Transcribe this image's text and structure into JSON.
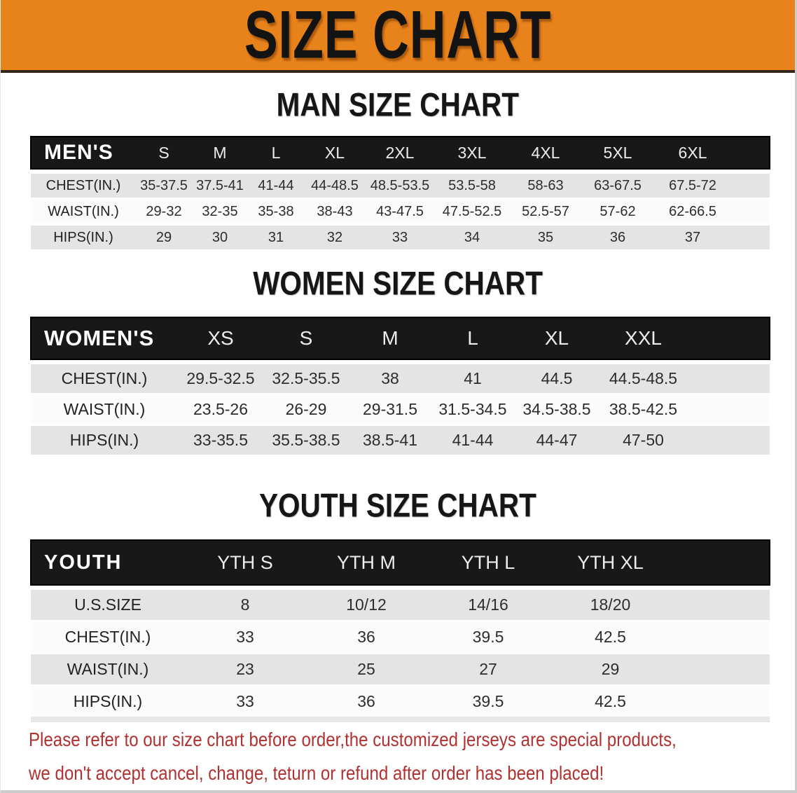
{
  "banner": {
    "title": "SIZE CHART",
    "background_color": "#e8821b",
    "text_color": "#131313"
  },
  "sections": [
    {
      "heading": "MAN SIZE CHART",
      "corner_label": "MEN'S",
      "columns": [
        "S",
        "M",
        "L",
        "XL",
        "2XL",
        "3XL",
        "4XL",
        "5XL",
        "6XL"
      ],
      "rows": [
        {
          "label": "CHEST(IN.)",
          "values": [
            "35-37.5",
            "37.5-41",
            "41-44",
            "44-48.5",
            "48.5-53.5",
            "53.5-58",
            "58-63",
            "63-67.5",
            "67.5-72"
          ]
        },
        {
          "label": "WAIST(IN.)",
          "values": [
            "29-32",
            "32-35",
            "35-38",
            "38-43",
            "43-47.5",
            "47.5-52.5",
            "52.5-57",
            "57-62",
            "62-66.5"
          ]
        },
        {
          "label": "HIPS(IN.)",
          "values": [
            "29",
            "30",
            "31",
            "32",
            "33",
            "34",
            "35",
            "36",
            "37"
          ]
        }
      ]
    },
    {
      "heading": "WOMEN SIZE CHART",
      "corner_label": "WOMEN'S",
      "columns": [
        "XS",
        "S",
        "M",
        "L",
        "XL",
        "XXL"
      ],
      "rows": [
        {
          "label": "CHEST(IN.)",
          "values": [
            "29.5-32.5",
            "32.5-35.5",
            "38",
            "41",
            "44.5",
            "44.5-48.5"
          ]
        },
        {
          "label": "WAIST(IN.)",
          "values": [
            "23.5-26",
            "26-29",
            "29-31.5",
            "31.5-34.5",
            "34.5-38.5",
            "38.5-42.5"
          ]
        },
        {
          "label": "HIPS(IN.)",
          "values": [
            "33-35.5",
            "35.5-38.5",
            "38.5-41",
            "41-44",
            "44-47",
            "47-50"
          ]
        }
      ]
    },
    {
      "heading": "YOUTH SIZE CHART",
      "corner_label": "YOUTH",
      "columns": [
        "YTH S",
        "YTH M",
        "YTH L",
        "YTH XL"
      ],
      "rows": [
        {
          "label": "U.S.SIZE",
          "values": [
            "8",
            "10/12",
            "14/16",
            "18/20"
          ]
        },
        {
          "label": "CHEST(IN.)",
          "values": [
            "33",
            "36",
            "39.5",
            "42.5"
          ]
        },
        {
          "label": "WAIST(IN.)",
          "values": [
            "23",
            "25",
            "27",
            "29"
          ]
        },
        {
          "label": "HIPS(IN.)",
          "values": [
            "33",
            "36",
            "39.5",
            "42.5"
          ]
        }
      ]
    }
  ],
  "table_style": {
    "header_bar_color": "#181818",
    "stripe_gray": "#e4e4e4",
    "stripe_white": "#fbfbfb"
  },
  "note": {
    "line1": "Please refer to our size chart before order,the customized jerseys are special products,",
    "line2": "we don't accept cancel, change, teturn or refund after order has been placed!",
    "color": "#b03130"
  }
}
